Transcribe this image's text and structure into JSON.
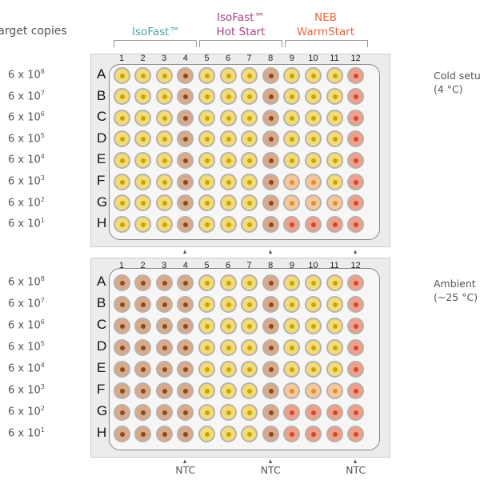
{
  "header": {
    "target_label": "Target copies",
    "groups": [
      {
        "lines": [
          "IsoFast™"
        ],
        "color": "#4aa3a8"
      },
      {
        "lines": [
          "IsoFast™",
          "Hot Start"
        ],
        "color": "#a0457e"
      },
      {
        "lines": [
          "NEB",
          "WarmStart"
        ],
        "color": "#e8673a"
      }
    ]
  },
  "copies": [
    {
      "base": "6 x 10",
      "exp": "8"
    },
    {
      "base": "6 x 10",
      "exp": "7"
    },
    {
      "base": "6 x 10",
      "exp": "6"
    },
    {
      "base": "6 x 10",
      "exp": "5"
    },
    {
      "base": "6 x 10",
      "exp": "4"
    },
    {
      "base": "6 x 10",
      "exp": "3"
    },
    {
      "base": "6 x 10",
      "exp": "2"
    },
    {
      "base": "6 x 10",
      "exp": "1"
    }
  ],
  "columns": [
    "1",
    "2",
    "3",
    "4",
    "5",
    "6",
    "7",
    "8",
    "9",
    "10",
    "11",
    "12"
  ],
  "rows": [
    "A",
    "B",
    "C",
    "D",
    "E",
    "F",
    "G",
    "H"
  ],
  "well_colors": {
    "y": {
      "fill": "#f2dc7a",
      "center": "#c9a500"
    },
    "b": {
      "fill": "#d8aa8c",
      "center": "#8a4a1e"
    },
    "o": {
      "fill": "#f5c79c",
      "center": "#e0902a"
    },
    "r": {
      "fill": "#eea08c",
      "center": "#cc4a2a"
    }
  },
  "plates": [
    {
      "condition": [
        "Cold setup",
        "(4 °C)"
      ],
      "wells": [
        "yyybyyybyyyr",
        "yyybyyybyyyr",
        "yyybyyybyyyr",
        "yyybyyybyyyr",
        "yyybyyybyyyr",
        "yyybyyybooyr",
        "yyybyyybooor",
        "yyybyyybrrrr"
      ]
    },
    {
      "condition": [
        "Ambient",
        "(~25 °C)"
      ],
      "wells": [
        "bbbbyyybyyyr",
        "bbbbyyybyyyr",
        "bbbbyyybyyyr",
        "bbbbyyybyyyr",
        "bbbbyyybyyyr",
        "bbbbyyyboooR",
        "bbbbyyybrrrr",
        "bbbbyyybrrrr"
      ],
      "ntc_label": "NTC",
      "ntc_columns": [
        "4",
        "8",
        "12"
      ]
    }
  ]
}
